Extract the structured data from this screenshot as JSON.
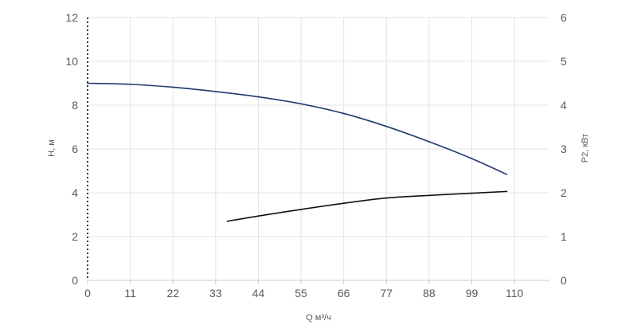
{
  "chart_data": {
    "type": "line",
    "xlabel": "Q м³/ч",
    "ylabel_left": "H, м",
    "ylabel_right": "P2, кВт",
    "x_ticks": [
      0,
      11,
      22,
      33,
      44,
      55,
      66,
      77,
      88,
      99,
      110
    ],
    "x_tick_labels": [
      "0",
      "11",
      "22",
      "33",
      "44",
      "55",
      "66",
      "77",
      "88",
      "99",
      "110"
    ],
    "xlim": [
      0,
      119
    ],
    "ylim_left": [
      0,
      12
    ],
    "y_left_ticks": [
      0,
      2,
      4,
      6,
      8,
      10,
      12
    ],
    "y_left_tick_labels": [
      "0",
      "2",
      "4",
      "6",
      "8",
      "10",
      "12"
    ],
    "ylim_right": [
      0,
      6
    ],
    "y_right_ticks": [
      0,
      1,
      2,
      3,
      4,
      5,
      6
    ],
    "y_right_tick_labels": [
      "0",
      "1",
      "2",
      "3",
      "4",
      "5",
      "6"
    ],
    "grid": true,
    "series": [
      {
        "axis": "left",
        "color": "#1f3a6e",
        "x": [
          0,
          11,
          22,
          33,
          44,
          55,
          66,
          77,
          88,
          99,
          108
        ],
        "values": [
          9.0,
          8.95,
          8.82,
          8.62,
          8.38,
          8.06,
          7.62,
          7.03,
          6.33,
          5.56,
          4.84
        ]
      },
      {
        "axis": "right",
        "color": "#111111",
        "x": [
          36,
          44,
          55,
          66,
          77,
          88,
          99,
          108
        ],
        "values": [
          1.35,
          1.47,
          1.62,
          1.76,
          1.88,
          1.94,
          1.99,
          2.03
        ]
      }
    ]
  }
}
